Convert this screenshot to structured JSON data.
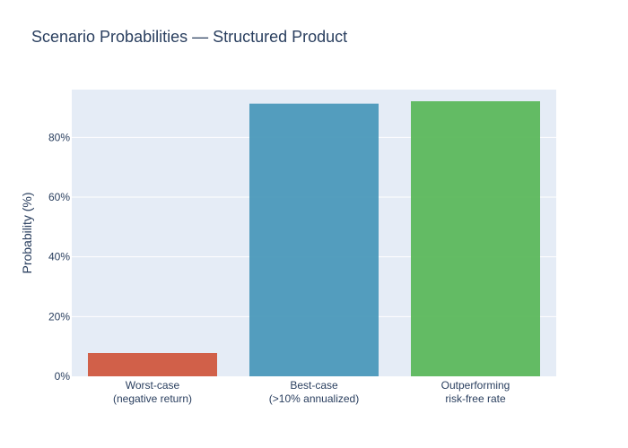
{
  "chart_data": {
    "type": "bar",
    "title": "Scenario Probabilities — Structured Product",
    "xlabel": "",
    "ylabel": "Probability (%)",
    "ylim": [
      0,
      96
    ],
    "yticks": [
      0,
      20,
      40,
      60,
      80
    ],
    "ytick_labels": [
      "0%",
      "20%",
      "40%",
      "60%",
      "80%"
    ],
    "categories": [
      [
        "Worst-case",
        "(negative return)"
      ],
      [
        "Best-case",
        "(>10% annualized)"
      ],
      [
        "Outperforming",
        "risk-free rate"
      ]
    ],
    "values": [
      7.8,
      91.3,
      92.1
    ],
    "colors": [
      "#d0593f",
      "#4b99bb",
      "#5cb85c"
    ],
    "background": "#e5ecf6",
    "grid": true,
    "legend": false
  }
}
